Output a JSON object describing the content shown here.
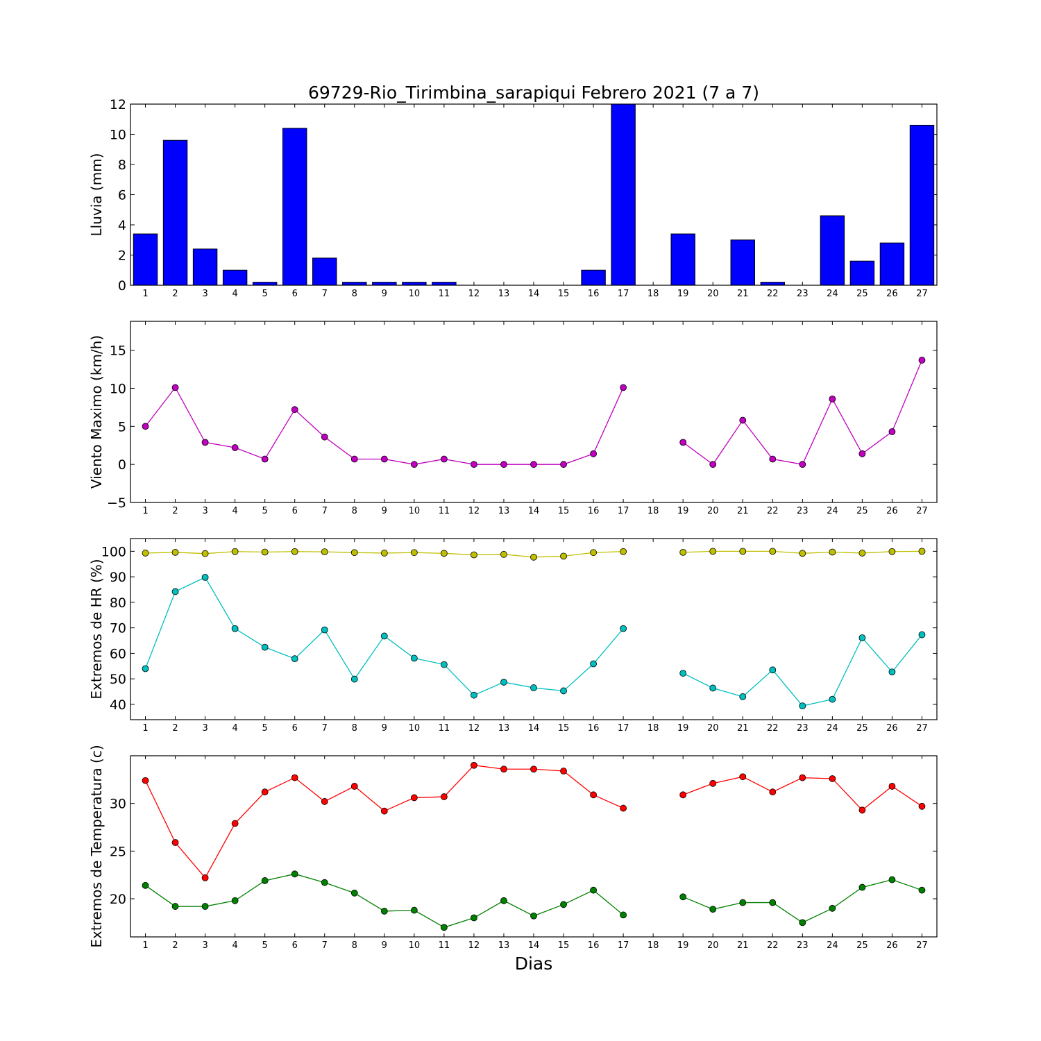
{
  "title": "69729-Rio_Tirimbina_sarapiqui Febrero 2021  (7 a 7)",
  "xlabel": "Dias",
  "days": [
    1,
    2,
    3,
    4,
    5,
    6,
    7,
    8,
    9,
    10,
    11,
    12,
    13,
    14,
    15,
    16,
    17,
    18,
    19,
    20,
    21,
    22,
    23,
    24,
    25,
    26,
    27
  ],
  "chart_data": [
    {
      "type": "bar",
      "ylabel": "Lluvia (mm)",
      "ylim": [
        0,
        12
      ],
      "yticks": [
        0,
        2,
        4,
        6,
        8,
        10,
        12
      ],
      "color": "#0000ff",
      "x": [
        1,
        2,
        3,
        4,
        5,
        6,
        7,
        8,
        9,
        10,
        11,
        12,
        13,
        14,
        15,
        16,
        17,
        18,
        19,
        20,
        21,
        22,
        23,
        24,
        25,
        26,
        27
      ],
      "values": [
        3.4,
        9.6,
        2.4,
        1.0,
        0.2,
        10.4,
        1.8,
        0.2,
        0.2,
        0.2,
        0.2,
        0,
        0,
        0,
        0,
        1.0,
        12.0,
        null,
        3.4,
        0,
        3.0,
        0.2,
        0,
        4.6,
        1.6,
        2.8,
        10.6
      ]
    },
    {
      "type": "line",
      "ylabel": "Viento Maximo (km/h)",
      "ylim": [
        -5,
        18.8
      ],
      "yticks": [
        -5,
        0,
        5,
        10,
        15
      ],
      "x": [
        1,
        2,
        3,
        4,
        5,
        6,
        7,
        8,
        9,
        10,
        11,
        12,
        13,
        14,
        15,
        16,
        17,
        18,
        19,
        20,
        21,
        22,
        23,
        24,
        25,
        26,
        27
      ],
      "series": [
        {
          "color": "#bf00bf",
          "values": [
            5.0,
            10.1,
            2.9,
            2.2,
            0.7,
            7.2,
            3.6,
            0.7,
            0.7,
            0.0,
            0.7,
            0.0,
            0.0,
            0.0,
            0.0,
            1.4,
            10.1,
            null,
            2.9,
            0.0,
            5.8,
            0.7,
            0.0,
            8.6,
            1.4,
            4.3,
            13.7
          ]
        }
      ]
    },
    {
      "type": "line",
      "ylabel": "Extremos de HR (%)",
      "ylim": [
        34,
        105
      ],
      "yticks": [
        40,
        50,
        60,
        70,
        80,
        90,
        100
      ],
      "x": [
        1,
        2,
        3,
        4,
        5,
        6,
        7,
        8,
        9,
        10,
        11,
        12,
        13,
        14,
        15,
        16,
        17,
        18,
        19,
        20,
        21,
        22,
        23,
        24,
        25,
        26,
        27
      ],
      "series": [
        {
          "color": "#bfbf00",
          "values": [
            99.3,
            99.6,
            99.1,
            99.9,
            99.7,
            99.9,
            99.8,
            99.5,
            99.3,
            99.5,
            99.2,
            98.6,
            98.8,
            97.7,
            98.1,
            99.5,
            99.9,
            null,
            99.6,
            100.0,
            100.0,
            100.0,
            99.2,
            99.7,
            99.3,
            99.9,
            100.0
          ]
        },
        {
          "color": "#00bfbf",
          "values": [
            54.0,
            84.2,
            89.8,
            69.7,
            62.4,
            57.9,
            69.2,
            49.9,
            66.8,
            58.1,
            55.6,
            43.6,
            48.7,
            46.5,
            45.3,
            55.9,
            69.7,
            null,
            52.2,
            46.4,
            43.0,
            53.5,
            39.4,
            42.0,
            66.1,
            52.7,
            67.3
          ]
        }
      ]
    },
    {
      "type": "line",
      "ylabel": "Extremos de Temperatura (c)",
      "ylim": [
        16,
        35
      ],
      "yticks": [
        20,
        25,
        30
      ],
      "x": [
        1,
        2,
        3,
        4,
        5,
        6,
        7,
        8,
        9,
        10,
        11,
        12,
        13,
        14,
        15,
        16,
        17,
        18,
        19,
        20,
        21,
        22,
        23,
        24,
        25,
        26,
        27
      ],
      "series": [
        {
          "color": "#ff0000",
          "values": [
            32.4,
            25.9,
            22.2,
            27.9,
            31.2,
            32.7,
            30.2,
            31.8,
            29.2,
            30.6,
            30.7,
            34.0,
            33.6,
            33.6,
            33.4,
            30.9,
            29.5,
            null,
            30.9,
            32.1,
            32.8,
            31.2,
            32.7,
            32.6,
            29.3,
            31.8,
            29.7
          ]
        },
        {
          "color": "#008000",
          "values": [
            21.4,
            19.2,
            19.2,
            19.8,
            21.9,
            22.6,
            21.7,
            20.6,
            18.7,
            18.8,
            17.0,
            18.0,
            19.8,
            18.2,
            19.4,
            20.9,
            18.3,
            null,
            20.2,
            18.9,
            19.6,
            19.6,
            17.5,
            19.0,
            21.2,
            22.0,
            20.9
          ]
        }
      ]
    }
  ]
}
